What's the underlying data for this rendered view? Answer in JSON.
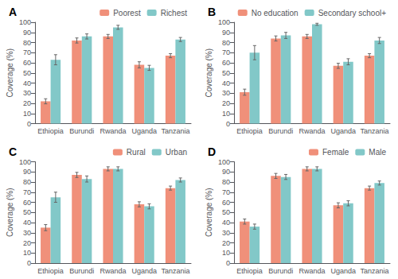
{
  "chart_data": [
    {
      "type": "bar",
      "title": "A",
      "categories": [
        "Ethiopia",
        "Burundi",
        "Rwanda",
        "Uganda",
        "Tanzania"
      ],
      "series": [
        {
          "name": "Poorest",
          "color": "#F0907A",
          "values": [
            22,
            82,
            86,
            58,
            67
          ],
          "errors": [
            2.5,
            2.5,
            2,
            3,
            2
          ]
        },
        {
          "name": "Richest",
          "color": "#82C8C8",
          "values": [
            63,
            86,
            95,
            55,
            83
          ],
          "errors": [
            5,
            2.5,
            2,
            2.5,
            2
          ]
        }
      ],
      "ylabel": "Coverage (%)",
      "ylim": [
        0,
        100
      ],
      "yticks": [
        0,
        10,
        20,
        30,
        40,
        50,
        60,
        70,
        80,
        90,
        100
      ],
      "grid": false,
      "legend": "upper right"
    },
    {
      "type": "bar",
      "title": "B",
      "categories": [
        "Ethiopia",
        "Burundi",
        "Rwanda",
        "Uganda",
        "Tanzania"
      ],
      "series": [
        {
          "name": "No education",
          "color": "#F0907A",
          "values": [
            31,
            84,
            86,
            57,
            67
          ],
          "errors": [
            3,
            2.5,
            2,
            2.5,
            2
          ]
        },
        {
          "name": "Secondary school+",
          "color": "#82C8C8",
          "values": [
            70,
            87,
            98,
            61,
            82
          ],
          "errors": [
            7,
            3,
            1,
            3,
            3
          ]
        }
      ],
      "ylabel": "Coverage (%)",
      "ylim": [
        0,
        100
      ],
      "yticks": [
        0,
        10,
        20,
        30,
        40,
        50,
        60,
        70,
        80,
        90,
        100
      ],
      "grid": false,
      "legend": "upper right"
    },
    {
      "type": "bar",
      "title": "C",
      "categories": [
        "Ethiopia",
        "Burundi",
        "Rwanda",
        "Uganda",
        "Tanzania"
      ],
      "series": [
        {
          "name": "Rural",
          "color": "#F0907A",
          "values": [
            35,
            87,
            93,
            58,
            74
          ],
          "errors": [
            3,
            2.5,
            2,
            2.5,
            2
          ]
        },
        {
          "name": "Urban",
          "color": "#82C8C8",
          "values": [
            65,
            83,
            93,
            56,
            82
          ],
          "errors": [
            5,
            3,
            2,
            2.5,
            2
          ]
        }
      ],
      "ylabel": "Coverage (%)",
      "ylim": [
        0,
        100
      ],
      "yticks": [
        0,
        10,
        20,
        30,
        40,
        50,
        60,
        70,
        80,
        90,
        100
      ],
      "grid": false,
      "legend": "upper right"
    },
    {
      "type": "bar",
      "title": "D",
      "categories": [
        "Ethiopia",
        "Burundi",
        "Rwanda",
        "Uganda",
        "Tanzania"
      ],
      "series": [
        {
          "name": "Female",
          "color": "#F0907A",
          "values": [
            41,
            86,
            93,
            57,
            74
          ],
          "errors": [
            2.5,
            2.5,
            2,
            2.5,
            2
          ]
        },
        {
          "name": "Male",
          "color": "#82C8C8",
          "values": [
            36,
            85,
            93,
            59,
            79
          ],
          "errors": [
            2.5,
            2.5,
            2,
            2.5,
            2
          ]
        }
      ],
      "ylabel": "Coverage (%)",
      "ylim": [
        0,
        100
      ],
      "yticks": [
        0,
        10,
        20,
        30,
        40,
        50,
        60,
        70,
        80,
        90,
        100
      ],
      "grid": false,
      "legend": "upper right"
    }
  ]
}
